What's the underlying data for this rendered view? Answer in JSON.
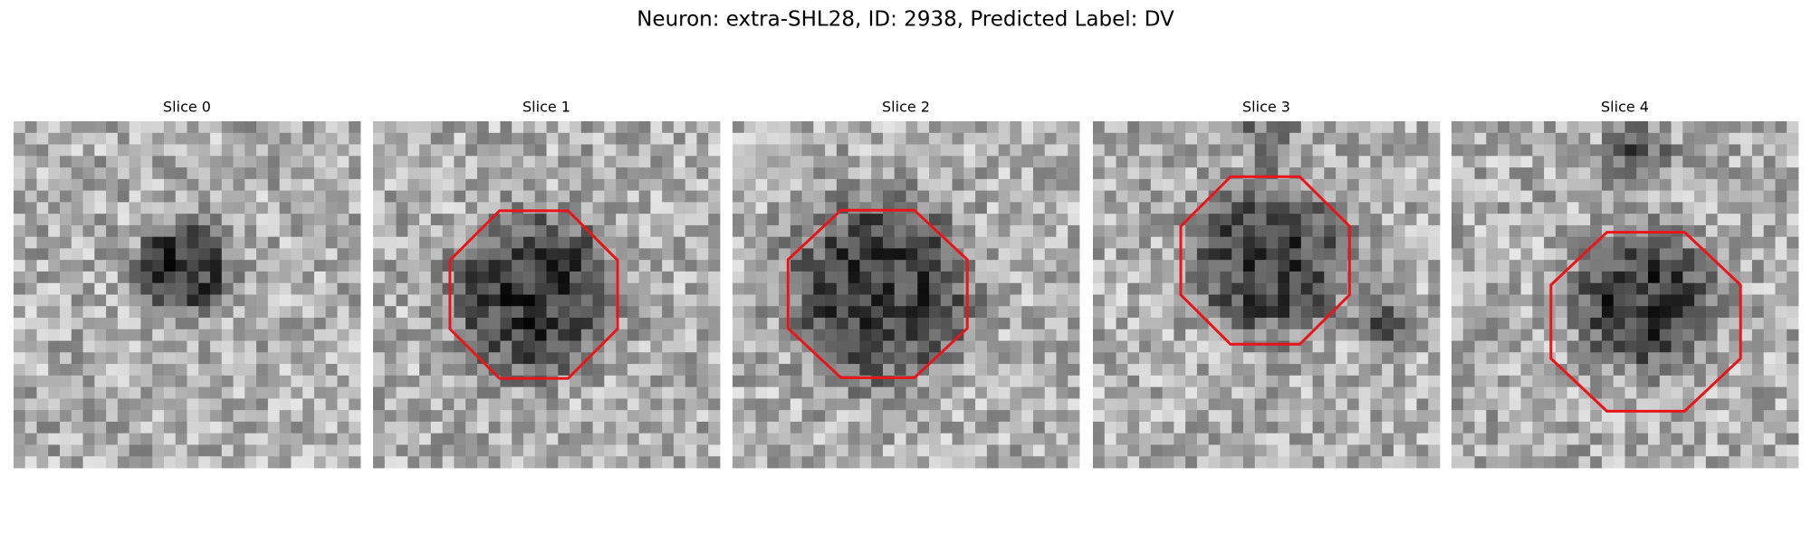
{
  "figure": {
    "title": "Neuron: extra-SHL28, ID: 2938, Predicted Label: DV",
    "panels": [
      {
        "title": "Slice 0"
      },
      {
        "title": "Slice 1"
      },
      {
        "title": "Slice 2"
      },
      {
        "title": "Slice 3"
      },
      {
        "title": "Slice 4"
      }
    ]
  }
}
